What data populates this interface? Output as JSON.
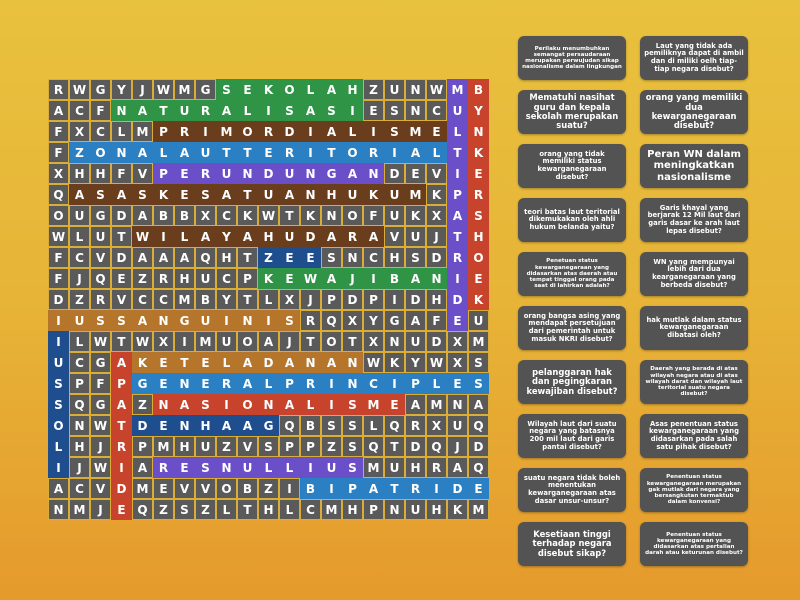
{
  "grid": {
    "rows": [
      "RWGYJWMGSEKOLAHZUNWMB",
      "ACFNATURALISASIESNCUY",
      "FXCLMPRIMORDIALISMELN",
      "FZONALAUTTERITORIALTK",
      "XHHFVPERUNDUNGANDEVIE",
      "QASASKESATUANHUKUMKPR",
      "OUGDABBXCKWTKNOFUKXAS",
      "WLUTWILAYAHUDARAVUJTH",
      "FCVDAAAQHTZEESNCHSDRO",
      "FJQEZRHUCPKEWAJIBANIE",
      "DZRVCCMBYTLXJPDPIDHDK",
      "IUSSANGUINISRQXYGAFEU",
      "ILWTWXIMUOAJTOTXNUDXM",
      "UCGAKETELADANANWKYWXS",
      "SPFPGENERALPRINCIPLES",
      "SQGAZNASIONALISMEAMNA",
      "ONWTDENHAAGQBSSLQRXUQ",
      "LHJRPMHUZVSPPZSQTDQJD",
      "IJWIARESNULLIUSMUHRAQ",
      "ACVDMEVVOBZIBIPATRIDE",
      "NMJEQZSZLTHLCMHPNUHKM"
    ],
    "found_words": [
      {
        "word": "SEKOLAH",
        "row": 0,
        "col": 8,
        "dir": "across",
        "color": "#2f9446"
      },
      {
        "word": "NATURALISASI",
        "row": 1,
        "col": 3,
        "dir": "across",
        "color": "#2f9446"
      },
      {
        "word": "PRIMORDIALISME",
        "row": 2,
        "col": 5,
        "dir": "across",
        "color": "#6a3e1d"
      },
      {
        "word": "ZONALAUTTERITORIAL",
        "row": 3,
        "col": 1,
        "dir": "across",
        "color": "#2a80c3"
      },
      {
        "word": "PERUNDUNGAN",
        "row": 4,
        "col": 5,
        "dir": "across",
        "color": "#6a4fc8"
      },
      {
        "word": "ASASKESATUANHUKUM",
        "row": 5,
        "col": 1,
        "dir": "across",
        "color": "#6a3e1d"
      },
      {
        "word": "WILAYAHUDARA",
        "row": 7,
        "col": 4,
        "dir": "across",
        "color": "#6a3e1d"
      },
      {
        "word": "ZEE",
        "row": 8,
        "col": 10,
        "dir": "across",
        "color": "#1f4e8e"
      },
      {
        "word": "KEWAJIBAN",
        "row": 9,
        "col": 10,
        "dir": "across",
        "color": "#2f9446"
      },
      {
        "word": "IUSSANGUINIS",
        "row": 11,
        "col": 0,
        "dir": "across",
        "color": "#b5762b"
      },
      {
        "word": "KETELADANAN",
        "row": 13,
        "col": 4,
        "dir": "across",
        "color": "#b5762b"
      },
      {
        "word": "GENERALPRINCIPLES",
        "row": 14,
        "col": 4,
        "dir": "across",
        "color": "#2a80c3"
      },
      {
        "word": "NASIONALISME",
        "row": 15,
        "col": 5,
        "dir": "across",
        "color": "#c7432b"
      },
      {
        "word": "DENHAAG",
        "row": 16,
        "col": 4,
        "dir": "across",
        "color": "#1f4e8e"
      },
      {
        "word": "RESNULLIUS",
        "row": 18,
        "col": 5,
        "dir": "across",
        "color": "#6a4fc8"
      },
      {
        "word": "BIPATRIDE",
        "row": 19,
        "col": 12,
        "dir": "across",
        "color": "#2a80c3"
      },
      {
        "word": "MULTIPATRIDE",
        "row": 0,
        "col": 19,
        "dir": "down",
        "color": "#6a4fc8"
      },
      {
        "word": "BYNKERSHOEK",
        "row": 0,
        "col": 20,
        "dir": "down",
        "color": "#c7432b"
      },
      {
        "word": "IUSSOLI",
        "row": 12,
        "col": 0,
        "dir": "down",
        "color": "#1f4e8e"
      },
      {
        "word": "APATRIDE",
        "row": 13,
        "col": 3,
        "dir": "down",
        "color": "#c7432b"
      }
    ],
    "cell_color": "#5a5a5a"
  },
  "clues": [
    {
      "text": "Perilaku menumbuhkan semangat persaudaraan merupakan perwujudan sikap nasionalisme dalam lingkungan",
      "size": "s1"
    },
    {
      "text": "Laut yang tidak ada pemiliknya dapat di ambil dan di miliki oelh tiap-tiap negara disebut?",
      "size": "s2"
    },
    {
      "text": "Mematuhi nasihat guru dan kepala sekolah merupakan suatu?",
      "size": "s3"
    },
    {
      "text": "orang yang memiliki dua kewarganegaraan disebut?",
      "size": "s3"
    },
    {
      "text": "orang yang tidak memiliki status kewarganegaraan disebut?",
      "size": "s2"
    },
    {
      "text": "Peran WN dalam meningkatkan nasionalisme",
      "size": "s4"
    },
    {
      "text": "teori batas laut teritorial dikemukakan oleh ahli hukum belanda yaitu?",
      "size": "s2"
    },
    {
      "text": "Garis khayal yang berjarak 12 Mil laut dari garis dasar ke arah laut lepas disebut?",
      "size": "s2"
    },
    {
      "text": "Penetuan status kewarganegaraan yang didasarkan atas daerah atau tempat tinggal orang pada saat di lahirkan adalah?",
      "size": "s1"
    },
    {
      "text": "WN yang mempunyai lebih dari dua kearganegaraan yang berbeda disebut?",
      "size": "s2"
    },
    {
      "text": "orang bangsa asing yang mendapat persetujuan dari pemerintah untuk masuk NKRI disebut?",
      "size": "s2"
    },
    {
      "text": "hak mutlak dalam status kewarganegaraan dibatasi oleh?",
      "size": "s2"
    },
    {
      "text": "pelanggaran hak dan pegingkaran kewajiban disebut?",
      "size": "s3"
    },
    {
      "text": "Daerah yang berada di atas wilayah negara atau di atas wilayah darat dan wilayah laut teritorial suatu negara disebut?",
      "size": "s1"
    },
    {
      "text": "Wilayah laut dari suatu negara yang batasnya 200 mil laut dari garis pantai disebut?",
      "size": "s2"
    },
    {
      "text": "Asas penentuan status kewarganegaraan yang didasarkan pada salah satu pihak disebut?",
      "size": "s2"
    },
    {
      "text": "suatu negara tidak boleh menentukan kewarganegaraan atas dasar unsur-unsur?",
      "size": "s2"
    },
    {
      "text": "Penentuan status kewarganegaraan merupakan gak mutlak dari negara yang bersangkutan termaktub dalam konvensi?",
      "size": "s1"
    },
    {
      "text": "Kesetiaan tinggi terhadap negara disebut sikap?",
      "size": "s3"
    },
    {
      "text": "Penentuan status kewarganegaraan yang didasarkan atas pertalian darah atau keturunan disebut?",
      "size": "s1"
    }
  ]
}
